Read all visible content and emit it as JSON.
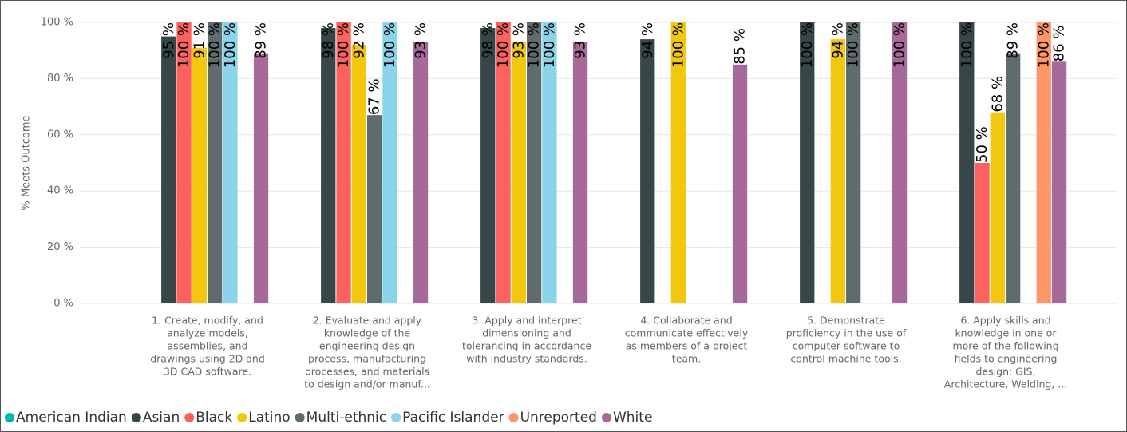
{
  "chart_data": {
    "type": "bar",
    "y_label": "% Meets Outcome",
    "categories": [
      [
        "1. Create, modify, and",
        "analyze models,",
        "assemblies, and",
        "drawings using 2D and",
        "3D CAD software."
      ],
      [
        "2. Evaluate and apply",
        "knowledge of the",
        "engineering design",
        "process, manufacturing",
        "processes, and materials",
        "to design and/or manuf..."
      ],
      [
        "3. Apply and interpret",
        "dimensioning and",
        "tolerancing in accordance",
        "with industry standards."
      ],
      [
        "4. Collaborate and",
        "communicate effectively",
        "as members of a project",
        "team."
      ],
      [
        "5. Demonstrate",
        "proficiency in the use of",
        "computer software to",
        "control machine tools."
      ],
      [
        "6. Apply skills and",
        "knowledge in one or",
        "more of the following",
        "fields to engineering",
        "design: GIS,",
        "Architecture, Welding, ..."
      ]
    ],
    "series": [
      {
        "name": "American Indian",
        "color": "#01b8aa",
        "values": [
          null,
          null,
          null,
          null,
          null,
          null
        ],
        "value_labels": [
          null,
          null,
          null,
          null,
          null,
          null
        ]
      },
      {
        "name": "Asian",
        "color": "#374649",
        "values": [
          95,
          98,
          98,
          94,
          100,
          100
        ],
        "value_labels": [
          "95 %",
          "98 %",
          "98 %",
          "94 %",
          "100 %",
          "100 %"
        ]
      },
      {
        "name": "Black",
        "color": "#fd625e",
        "values": [
          100,
          100,
          100,
          null,
          null,
          50
        ],
        "value_labels": [
          "100 %",
          "100 %",
          "100 %",
          null,
          null,
          "50 %"
        ]
      },
      {
        "name": "Latino",
        "color": "#f2c80f",
        "values": [
          91,
          92,
          93,
          100,
          94,
          68
        ],
        "value_labels": [
          "91 %",
          "92 %",
          "93 %",
          "100 %",
          "94 %",
          "68 %"
        ]
      },
      {
        "name": "Multi-ethnic",
        "color": "#5f6b6d",
        "values": [
          100,
          67,
          100,
          null,
          100,
          89
        ],
        "value_labels": [
          "100 %",
          "67 %",
          "100 %",
          null,
          "100 %",
          "89 %"
        ]
      },
      {
        "name": "Pacific Islander",
        "color": "#8ad4eb",
        "values": [
          100,
          100,
          100,
          null,
          null,
          null
        ],
        "value_labels": [
          "100 %",
          "100 %",
          "100 %",
          null,
          null,
          null
        ]
      },
      {
        "name": "Unreported",
        "color": "#fe9666",
        "values": [
          null,
          null,
          null,
          null,
          null,
          100
        ],
        "value_labels": [
          null,
          null,
          null,
          null,
          null,
          "100 %"
        ]
      },
      {
        "name": "White",
        "color": "#a66999",
        "values": [
          89,
          93,
          93,
          85,
          100,
          86
        ],
        "value_labels": [
          "89 %",
          "93 %",
          "93 %",
          "85 %",
          "100 %",
          "86 %"
        ]
      }
    ],
    "ylim": [
      0,
      100
    ],
    "yticks": [
      {
        "value": 0,
        "label": "0 %"
      },
      {
        "value": 20,
        "label": "20 %"
      },
      {
        "value": 40,
        "label": "40 %"
      },
      {
        "value": 60,
        "label": "60 %"
      },
      {
        "value": 80,
        "label": "80 %"
      },
      {
        "value": 100,
        "label": "100 %"
      }
    ],
    "grid": true,
    "legend": "bottom-left"
  }
}
